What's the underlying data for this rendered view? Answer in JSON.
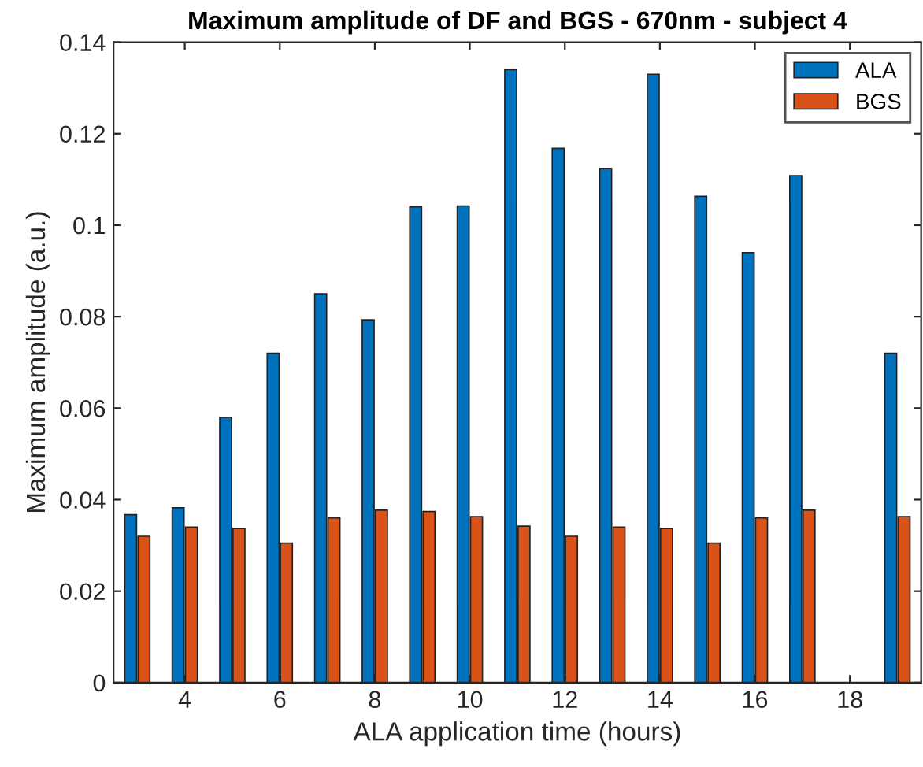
{
  "chart_data": {
    "type": "bar",
    "title": "Maximum amplitude of DF and BGS - 670nm - subject 4",
    "xlabel": "ALA application time (hours)",
    "ylabel": "Maximum amplitude (a.u.)",
    "x": [
      3,
      4,
      5,
      6,
      7,
      8,
      9,
      10,
      11,
      12,
      13,
      14,
      15,
      16,
      17,
      18,
      19
    ],
    "series": [
      {
        "name": "ALA",
        "color": "#0072bd",
        "values": [
          0.0367,
          0.0382,
          0.058,
          0.072,
          0.085,
          0.0793,
          0.104,
          0.1042,
          0.134,
          0.1168,
          0.1124,
          0.133,
          0.1063,
          0.094,
          0.1108,
          null,
          0.072
        ]
      },
      {
        "name": "BGS",
        "color": "#d95319",
        "values": [
          0.032,
          0.034,
          0.0337,
          0.0305,
          0.036,
          0.0377,
          0.0374,
          0.0363,
          0.0342,
          0.032,
          0.034,
          0.0337,
          0.0305,
          0.036,
          0.0377,
          null,
          0.0363
        ]
      }
    ],
    "xlim": [
      2.5,
      19.5
    ],
    "xticks": [
      4,
      6,
      8,
      10,
      12,
      14,
      16,
      18
    ],
    "ylim": [
      0,
      0.14
    ],
    "yticks": [
      0,
      0.02,
      0.04,
      0.06,
      0.08,
      0.1,
      0.12,
      0.14
    ],
    "grid": false,
    "legend": "top right"
  }
}
